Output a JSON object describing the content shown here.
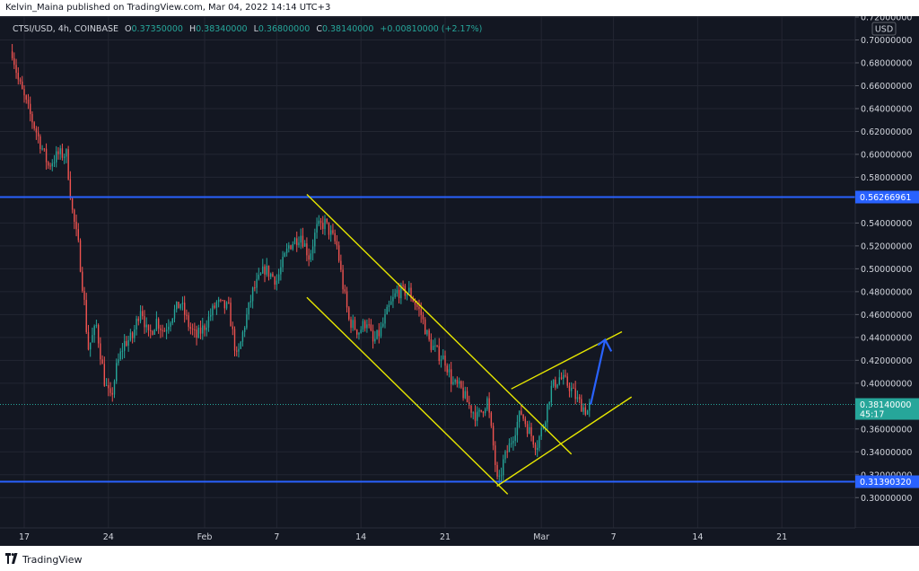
{
  "header": {
    "publisher_line": "Kelvin_Maina published on TradingView.com, Mar 04, 2022 14:14 UTC+3"
  },
  "legend": {
    "symbol": "CTSI/USD, 4h, COINBASE",
    "open_label": "O",
    "open": "0.37350000",
    "high_label": "H",
    "high": "0.38340000",
    "low_label": "L",
    "low": "0.36800000",
    "close_label": "C",
    "close": "0.38140000",
    "change": "+0.00810000 (+2.17%)"
  },
  "footer": {
    "brand": "TradingView"
  },
  "colors": {
    "background": "#131722",
    "up": "#26a69a",
    "down": "#ef5350",
    "hline": "#2962ff",
    "channel": "#e6e600",
    "arrow": "#2962ff"
  },
  "chart_data": {
    "type": "candlestick",
    "symbol": "CTSI/USD",
    "interval": "4h",
    "exchange": "COINBASE",
    "currency_label": "USD",
    "ylim": [
      0.29,
      0.72
    ],
    "y_ticks": [
      "0.72000000",
      "0.70000000",
      "0.68000000",
      "0.66000000",
      "0.64000000",
      "0.62000000",
      "0.60000000",
      "0.58000000",
      "0.54000000",
      "0.52000000",
      "0.50000000",
      "0.48000000",
      "0.46000000",
      "0.44000000",
      "0.42000000",
      "0.40000000",
      "0.36000000",
      "0.34000000",
      "0.32000000",
      "0.30000000"
    ],
    "x_ticks": [
      {
        "label": "17",
        "day": 0
      },
      {
        "label": "24",
        "day": 7
      },
      {
        "label": "Feb",
        "day": 15
      },
      {
        "label": "7",
        "day": 21
      },
      {
        "label": "14",
        "day": 28
      },
      {
        "label": "21",
        "day": 35
      },
      {
        "label": "Mar",
        "day": 43
      },
      {
        "label": "7",
        "day": 49
      },
      {
        "label": "14",
        "day": 56
      },
      {
        "label": "21",
        "day": 63
      }
    ],
    "price_path": [
      [
        -1.0,
        0.69
      ],
      [
        -0.5,
        0.665
      ],
      [
        0.3,
        0.64
      ],
      [
        1.0,
        0.62
      ],
      [
        1.5,
        0.605
      ],
      [
        2.0,
        0.59
      ],
      [
        2.8,
        0.6
      ],
      [
        3.5,
        0.6
      ],
      [
        4.0,
        0.55
      ],
      [
        4.5,
        0.52
      ],
      [
        5.0,
        0.47
      ],
      [
        5.3,
        0.43
      ],
      [
        6.0,
        0.45
      ],
      [
        6.7,
        0.4
      ],
      [
        7.2,
        0.385
      ],
      [
        7.7,
        0.415
      ],
      [
        8.3,
        0.435
      ],
      [
        9.0,
        0.44
      ],
      [
        9.7,
        0.468
      ],
      [
        10.3,
        0.44
      ],
      [
        11.0,
        0.455
      ],
      [
        11.6,
        0.445
      ],
      [
        12.3,
        0.46
      ],
      [
        13.0,
        0.47
      ],
      [
        13.7,
        0.45
      ],
      [
        14.3,
        0.44
      ],
      [
        15.0,
        0.45
      ],
      [
        16.0,
        0.47
      ],
      [
        17.0,
        0.465
      ],
      [
        17.7,
        0.42
      ],
      [
        18.3,
        0.45
      ],
      [
        19.0,
        0.48
      ],
      [
        20.0,
        0.5
      ],
      [
        21.0,
        0.49
      ],
      [
        22.0,
        0.52
      ],
      [
        23.0,
        0.53
      ],
      [
        23.7,
        0.51
      ],
      [
        24.3,
        0.535
      ],
      [
        25.0,
        0.54
      ],
      [
        25.5,
        0.53
      ],
      [
        26.0,
        0.52
      ],
      [
        26.5,
        0.485
      ],
      [
        27.0,
        0.455
      ],
      [
        27.8,
        0.445
      ],
      [
        28.5,
        0.455
      ],
      [
        29.0,
        0.435
      ],
      [
        29.6,
        0.445
      ],
      [
        30.3,
        0.465
      ],
      [
        31.0,
        0.48
      ],
      [
        32.0,
        0.48
      ],
      [
        33.0,
        0.46
      ],
      [
        33.7,
        0.435
      ],
      [
        34.5,
        0.425
      ],
      [
        35.0,
        0.42
      ],
      [
        35.6,
        0.4
      ],
      [
        36.3,
        0.395
      ],
      [
        37.0,
        0.38
      ],
      [
        37.7,
        0.37
      ],
      [
        38.5,
        0.385
      ],
      [
        39.0,
        0.345
      ],
      [
        39.4,
        0.308
      ],
      [
        39.8,
        0.33
      ],
      [
        40.5,
        0.35
      ],
      [
        41.3,
        0.375
      ],
      [
        41.9,
        0.36
      ],
      [
        42.6,
        0.345
      ],
      [
        43.2,
        0.365
      ],
      [
        43.8,
        0.395
      ],
      [
        44.5,
        0.405
      ],
      [
        45.3,
        0.398
      ],
      [
        46.0,
        0.385
      ],
      [
        46.8,
        0.375
      ],
      [
        47.1,
        0.3814
      ]
    ],
    "horizontal_levels": [
      {
        "value": 0.56266961,
        "label": "0.56266961"
      },
      {
        "value": 0.3139032,
        "label": "0.31390320"
      }
    ],
    "current_price": {
      "value": 0.3814,
      "label": "0.38140000",
      "countdown": "45:17"
    },
    "annotations": {
      "descending_channel": [
        {
          "from": [
            23.5,
            0.565
          ],
          "to": [
            45.5,
            0.338
          ]
        },
        {
          "from": [
            23.5,
            0.475
          ],
          "to": [
            40.2,
            0.303
          ]
        }
      ],
      "ascending_channel": [
        {
          "from": [
            40.5,
            0.395
          ],
          "to": [
            49.7,
            0.445
          ]
        },
        {
          "from": [
            39.3,
            0.31
          ],
          "to": [
            50.5,
            0.388
          ]
        }
      ],
      "projection_arrow": {
        "from": [
          47.1,
          0.3814
        ],
        "to": [
          48.3,
          0.438
        ]
      }
    }
  }
}
